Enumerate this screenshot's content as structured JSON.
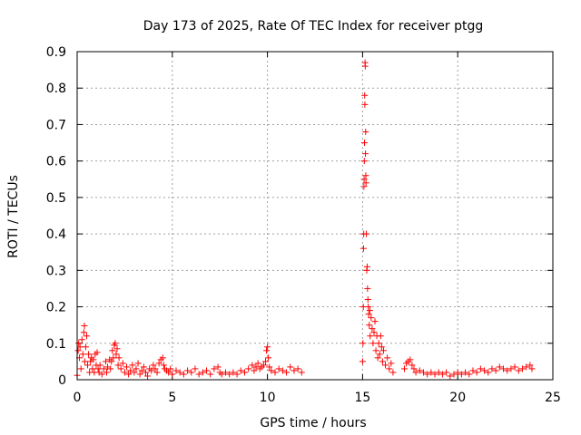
{
  "chart_data": {
    "type": "scatter",
    "title": "Day 173 of 2025, Rate Of TEC Index for receiver ptgg",
    "xlabel": "GPS time / hours",
    "ylabel": "ROTI / TECUs",
    "xlim": [
      0,
      25
    ],
    "ylim": [
      0,
      0.9
    ],
    "x_ticks": [
      0,
      5,
      10,
      15,
      20,
      25
    ],
    "y_ticks": [
      0,
      0.1,
      0.2,
      0.3,
      0.4,
      0.5,
      0.6,
      0.7,
      0.8,
      0.9
    ],
    "grid": true,
    "legend": "none",
    "marker": "plus",
    "marker_color": "#ff0000",
    "series": [
      {
        "points": [
          [
            0.0,
            0.012
          ],
          [
            0.05,
            0.08
          ],
          [
            0.08,
            0.1
          ],
          [
            0.12,
            0.06
          ],
          [
            0.15,
            0.09
          ],
          [
            0.2,
            0.03
          ],
          [
            0.25,
            0.11
          ],
          [
            0.3,
            0.07
          ],
          [
            0.35,
            0.13
          ],
          [
            0.38,
            0.148
          ],
          [
            0.4,
            0.05
          ],
          [
            0.45,
            0.09
          ],
          [
            0.5,
            0.12
          ],
          [
            0.55,
            0.04
          ],
          [
            0.6,
            0.07
          ],
          [
            0.65,
            0.02
          ],
          [
            0.7,
            0.05
          ],
          [
            0.75,
            0.06
          ],
          [
            0.8,
            0.03
          ],
          [
            0.85,
            0.055
          ],
          [
            0.9,
            0.02
          ],
          [
            0.95,
            0.07
          ],
          [
            1.0,
            0.04
          ],
          [
            1.05,
            0.075
          ],
          [
            1.1,
            0.03
          ],
          [
            1.15,
            0.02
          ],
          [
            1.2,
            0.04
          ],
          [
            1.3,
            0.015
          ],
          [
            1.4,
            0.03
          ],
          [
            1.5,
            0.05
          ],
          [
            1.55,
            0.02
          ],
          [
            1.6,
            0.035
          ],
          [
            1.7,
            0.055
          ],
          [
            1.75,
            0.03
          ],
          [
            1.8,
            0.05
          ],
          [
            1.85,
            0.08
          ],
          [
            1.9,
            0.06
          ],
          [
            1.95,
            0.095
          ],
          [
            2.0,
            0.1
          ],
          [
            2.05,
            0.07
          ],
          [
            2.1,
            0.085
          ],
          [
            2.15,
            0.04
          ],
          [
            2.2,
            0.06
          ],
          [
            2.3,
            0.03
          ],
          [
            2.4,
            0.045
          ],
          [
            2.5,
            0.02
          ],
          [
            2.6,
            0.035
          ],
          [
            2.7,
            0.015
          ],
          [
            2.8,
            0.025
          ],
          [
            2.9,
            0.04
          ],
          [
            3.0,
            0.02
          ],
          [
            3.1,
            0.03
          ],
          [
            3.2,
            0.045
          ],
          [
            3.3,
            0.015
          ],
          [
            3.4,
            0.025
          ],
          [
            3.5,
            0.035
          ],
          [
            3.6,
            0.02
          ],
          [
            3.7,
            0.01
          ],
          [
            3.8,
            0.03
          ],
          [
            3.9,
            0.025
          ],
          [
            4.0,
            0.04
          ],
          [
            4.1,
            0.03
          ],
          [
            4.2,
            0.02
          ],
          [
            4.3,
            0.045
          ],
          [
            4.4,
            0.055
          ],
          [
            4.5,
            0.06
          ],
          [
            4.55,
            0.04
          ],
          [
            4.6,
            0.03
          ],
          [
            4.7,
            0.025
          ],
          [
            4.8,
            0.02
          ],
          [
            4.9,
            0.03
          ],
          [
            5.0,
            0.015
          ],
          [
            5.2,
            0.025
          ],
          [
            5.4,
            0.02
          ],
          [
            5.6,
            0.015
          ],
          [
            5.8,
            0.025
          ],
          [
            6.0,
            0.02
          ],
          [
            6.2,
            0.03
          ],
          [
            6.4,
            0.015
          ],
          [
            6.6,
            0.02
          ],
          [
            6.8,
            0.025
          ],
          [
            7.0,
            0.015
          ],
          [
            7.2,
            0.03
          ],
          [
            7.4,
            0.035
          ],
          [
            7.5,
            0.02
          ],
          [
            7.6,
            0.015
          ],
          [
            7.8,
            0.02
          ],
          [
            8.0,
            0.015
          ],
          [
            8.2,
            0.02
          ],
          [
            8.4,
            0.015
          ],
          [
            8.6,
            0.025
          ],
          [
            8.8,
            0.02
          ],
          [
            9.0,
            0.03
          ],
          [
            9.2,
            0.04
          ],
          [
            9.3,
            0.025
          ],
          [
            9.4,
            0.035
          ],
          [
            9.5,
            0.045
          ],
          [
            9.6,
            0.03
          ],
          [
            9.7,
            0.035
          ],
          [
            9.8,
            0.04
          ],
          [
            9.9,
            0.05
          ],
          [
            9.95,
            0.08
          ],
          [
            10.0,
            0.09
          ],
          [
            10.05,
            0.06
          ],
          [
            10.1,
            0.035
          ],
          [
            10.2,
            0.025
          ],
          [
            10.4,
            0.02
          ],
          [
            10.6,
            0.03
          ],
          [
            10.8,
            0.025
          ],
          [
            11.0,
            0.02
          ],
          [
            11.2,
            0.035
          ],
          [
            11.4,
            0.025
          ],
          [
            11.6,
            0.03
          ],
          [
            11.8,
            0.02
          ],
          [
            15.0,
            0.05
          ],
          [
            15.02,
            0.1
          ],
          [
            15.04,
            0.2
          ],
          [
            15.05,
            0.36
          ],
          [
            15.06,
            0.4
          ],
          [
            15.07,
            0.53
          ],
          [
            15.08,
            0.55
          ],
          [
            15.09,
            0.6
          ],
          [
            15.1,
            0.65
          ],
          [
            15.11,
            0.78
          ],
          [
            15.12,
            0.755
          ],
          [
            15.13,
            0.87
          ],
          [
            15.14,
            0.86
          ],
          [
            15.15,
            0.62
          ],
          [
            15.16,
            0.68
          ],
          [
            15.17,
            0.56
          ],
          [
            15.18,
            0.54
          ],
          [
            15.2,
            0.4
          ],
          [
            15.22,
            0.3
          ],
          [
            15.24,
            0.31
          ],
          [
            15.26,
            0.25
          ],
          [
            15.28,
            0.22
          ],
          [
            15.3,
            0.2
          ],
          [
            15.32,
            0.18
          ],
          [
            15.35,
            0.15
          ],
          [
            15.38,
            0.19
          ],
          [
            15.4,
            0.12
          ],
          [
            15.45,
            0.17
          ],
          [
            15.5,
            0.14
          ],
          [
            15.55,
            0.1
          ],
          [
            15.6,
            0.13
          ],
          [
            15.65,
            0.16
          ],
          [
            15.7,
            0.08
          ],
          [
            15.75,
            0.12
          ],
          [
            15.8,
            0.06
          ],
          [
            15.85,
            0.1
          ],
          [
            15.9,
            0.07
          ],
          [
            15.95,
            0.12
          ],
          [
            16.0,
            0.09
          ],
          [
            16.05,
            0.05
          ],
          [
            16.1,
            0.08
          ],
          [
            16.2,
            0.04
          ],
          [
            16.3,
            0.06
          ],
          [
            16.4,
            0.03
          ],
          [
            16.5,
            0.045
          ],
          [
            16.6,
            0.02
          ],
          [
            17.2,
            0.03
          ],
          [
            17.3,
            0.045
          ],
          [
            17.4,
            0.05
          ],
          [
            17.5,
            0.055
          ],
          [
            17.6,
            0.04
          ],
          [
            17.7,
            0.03
          ],
          [
            17.8,
            0.02
          ],
          [
            18.0,
            0.025
          ],
          [
            18.2,
            0.02
          ],
          [
            18.4,
            0.015
          ],
          [
            18.6,
            0.02
          ],
          [
            18.8,
            0.015
          ],
          [
            19.0,
            0.02
          ],
          [
            19.2,
            0.015
          ],
          [
            19.4,
            0.02
          ],
          [
            19.6,
            0.01
          ],
          [
            19.8,
            0.015
          ],
          [
            20.0,
            0.02
          ],
          [
            20.2,
            0.015
          ],
          [
            20.4,
            0.02
          ],
          [
            20.6,
            0.015
          ],
          [
            20.8,
            0.025
          ],
          [
            21.0,
            0.02
          ],
          [
            21.2,
            0.03
          ],
          [
            21.4,
            0.025
          ],
          [
            21.6,
            0.02
          ],
          [
            21.8,
            0.03
          ],
          [
            22.0,
            0.025
          ],
          [
            22.2,
            0.035
          ],
          [
            22.4,
            0.03
          ],
          [
            22.6,
            0.025
          ],
          [
            22.8,
            0.03
          ],
          [
            23.0,
            0.035
          ],
          [
            23.2,
            0.025
          ],
          [
            23.4,
            0.03
          ],
          [
            23.6,
            0.035
          ],
          [
            23.8,
            0.04
          ],
          [
            23.9,
            0.03
          ]
        ]
      }
    ]
  }
}
